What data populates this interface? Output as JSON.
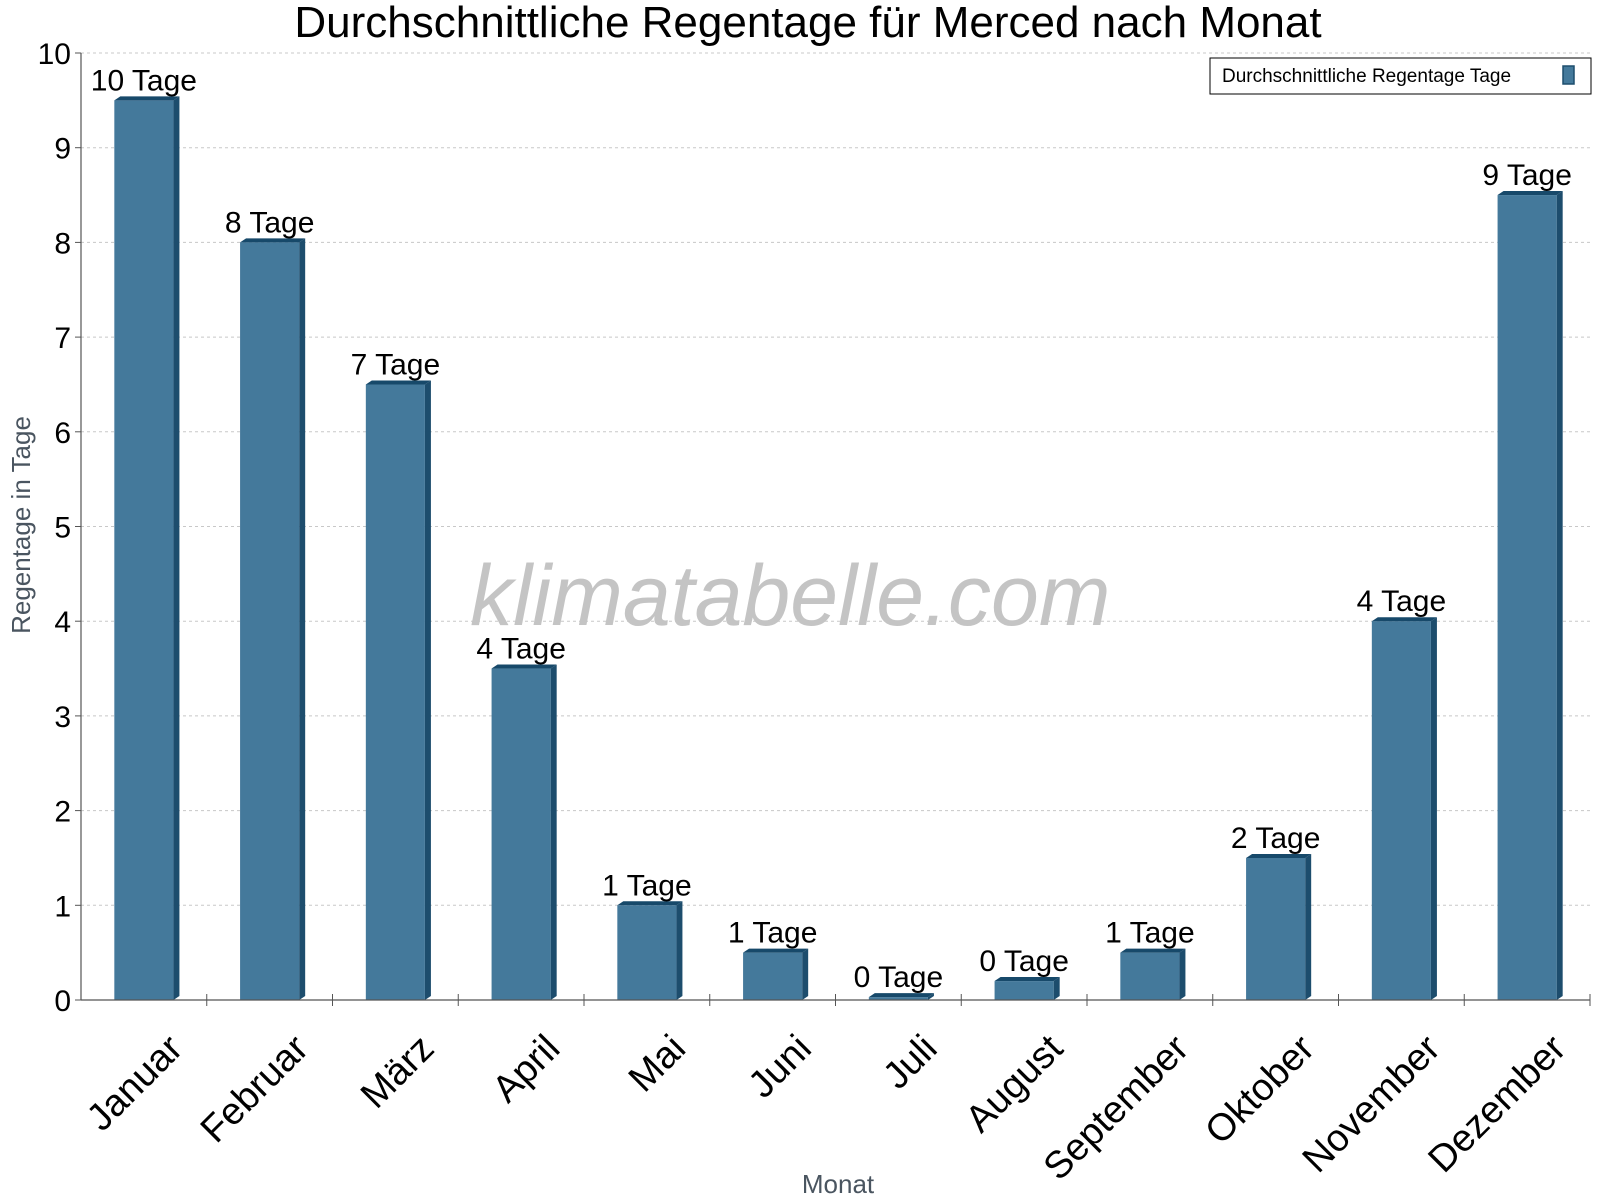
{
  "colors": {
    "bar_front": "#44799b",
    "bar_side": "#1d4d6d",
    "bar_top": "#17496a",
    "grid": "#c8c8c8",
    "axis": "#555555",
    "watermark": "#c4c4c4"
  },
  "watermark": "klimatabelle.com",
  "chart_data": {
    "type": "bar",
    "title": "Durchschnittliche Regentage für Merced nach Monat",
    "xlabel": "Monat",
    "ylabel": "Regentage in Tage",
    "ylim": [
      0,
      10
    ],
    "yticks": [
      "0",
      "1",
      "2",
      "3",
      "4",
      "5",
      "6",
      "7",
      "8",
      "9",
      "10"
    ],
    "grid": true,
    "legend_position": "top-right",
    "categories": [
      "Januar",
      "Februar",
      "März",
      "April",
      "Mai",
      "Juni",
      "Juli",
      "August",
      "September",
      "Oktober",
      "November",
      "Dezember"
    ],
    "series": [
      {
        "name": "Durchschnittliche Regentage Tage",
        "values": [
          9.5,
          8,
          6.5,
          3.5,
          1,
          0.5,
          0.03,
          0.2,
          0.5,
          1.5,
          4,
          8.5
        ],
        "labels": [
          "10 Tage",
          "8 Tage",
          "7 Tage",
          "4 Tage",
          "1 Tage",
          "1 Tage",
          "0 Tage",
          "0 Tage",
          "1 Tage",
          "2 Tage",
          "4 Tage",
          "9 Tage"
        ]
      }
    ]
  }
}
